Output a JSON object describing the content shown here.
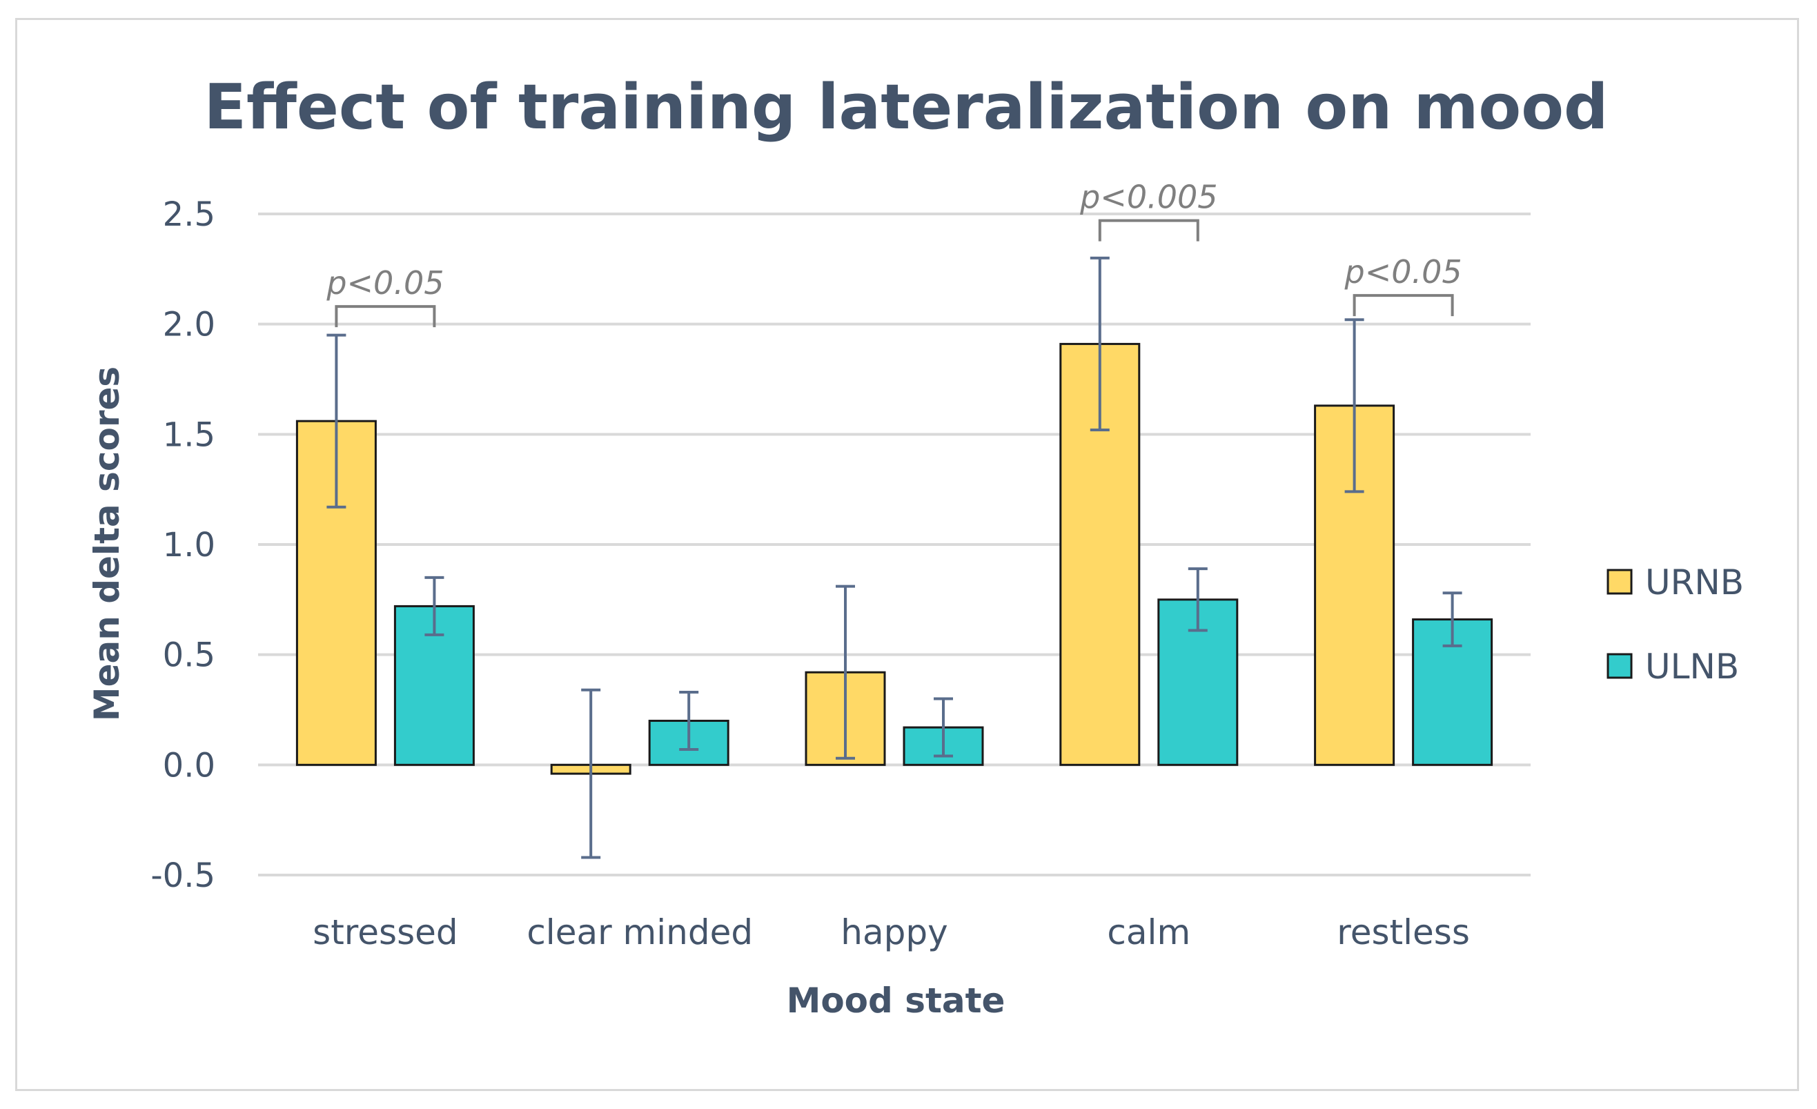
{
  "chart_data": {
    "type": "bar",
    "title": "Effect of training lateralization on mood",
    "xlabel": "Mood state",
    "ylabel": "Mean delta scores",
    "ylim": [
      -0.5,
      2.5
    ],
    "yticks": [
      -0.5,
      0.0,
      0.5,
      1.0,
      1.5,
      2.0,
      2.5
    ],
    "ytick_labels": [
      "-0.5",
      "0.0",
      "0.5",
      "1.0",
      "1.5",
      "2.0",
      "2.5"
    ],
    "grid": true,
    "legend_position": "right",
    "categories": [
      "stressed",
      "clear minded",
      "happy",
      "calm",
      "restless"
    ],
    "series": [
      {
        "name": "URNB",
        "color": "#ffd966",
        "values": [
          1.56,
          -0.04,
          0.42,
          1.91,
          1.63
        ],
        "errors": [
          0.39,
          0.38,
          0.39,
          0.39,
          0.39
        ]
      },
      {
        "name": "ULNB",
        "color": "#33cccc",
        "values": [
          0.72,
          0.2,
          0.17,
          0.75,
          0.66
        ],
        "errors": [
          0.13,
          0.13,
          0.13,
          0.14,
          0.12
        ]
      }
    ],
    "annotations": [
      {
        "category": "stressed",
        "text": "p<0.05",
        "bracket_y": 2.08
      },
      {
        "category": "calm",
        "text": "p<0.005",
        "bracket_y": 2.47
      },
      {
        "category": "restless",
        "text": "p<0.05",
        "bracket_y": 2.13
      }
    ]
  }
}
